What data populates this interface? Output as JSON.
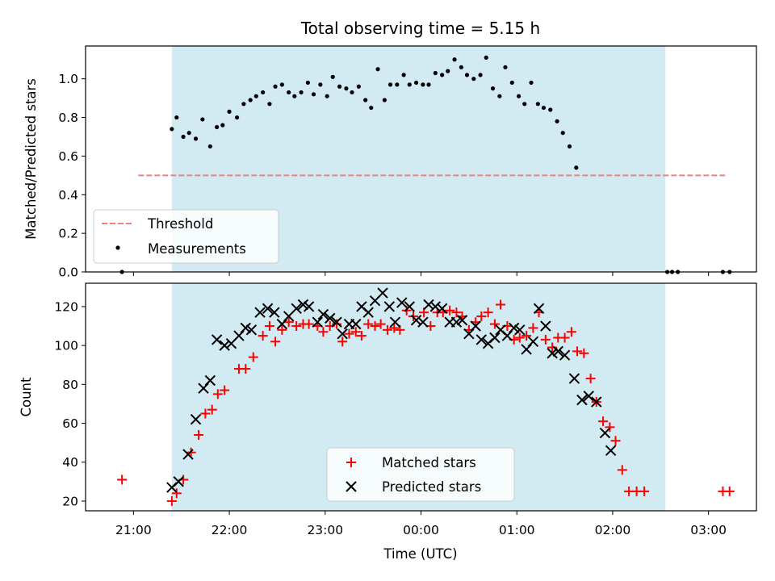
{
  "chart_data": {
    "title": "Total observing time = 5.15 h",
    "shade_colors": {
      "span": "#add8e6",
      "threshold": "#f08080",
      "measure": "#000000",
      "matched": "#ff0000",
      "predicted": "#000000"
    },
    "x_axis": {
      "label": "Time (UTC)",
      "ticks": [
        {
          "value": 21.0,
          "label": "21:00"
        },
        {
          "value": 22.0,
          "label": "22:00"
        },
        {
          "value": 23.0,
          "label": "23:00"
        },
        {
          "value": 24.0,
          "label": "00:00"
        },
        {
          "value": 25.0,
          "label": "01:00"
        },
        {
          "value": 26.0,
          "label": "02:00"
        },
        {
          "value": 27.0,
          "label": "03:00"
        }
      ],
      "range": [
        20.5,
        27.5
      ]
    },
    "observing_span": [
      21.4,
      26.55
    ],
    "panels": [
      {
        "type": "scatter",
        "ylabel": "Matched/Predicted stars",
        "ylim": [
          0.0,
          1.17
        ],
        "yticks": [
          {
            "value": 0.0,
            "label": "0.0"
          },
          {
            "value": 0.2,
            "label": "0.2"
          },
          {
            "value": 0.4,
            "label": "0.4"
          },
          {
            "value": 0.6,
            "label": "0.6"
          },
          {
            "value": 0.8,
            "label": "0.8"
          },
          {
            "value": 1.0,
            "label": "1.0"
          }
        ],
        "threshold": {
          "name": "Threshold",
          "value": 0.5,
          "x": [
            21.05,
            27.2
          ]
        },
        "measurements": {
          "name": "Measurements",
          "points": [
            [
              20.88,
              0.0
            ],
            [
              21.4,
              0.74
            ],
            [
              21.45,
              0.8
            ],
            [
              21.52,
              0.7
            ],
            [
              21.58,
              0.72
            ],
            [
              21.65,
              0.69
            ],
            [
              21.72,
              0.79
            ],
            [
              21.8,
              0.65
            ],
            [
              21.87,
              0.75
            ],
            [
              21.93,
              0.76
            ],
            [
              22.0,
              0.83
            ],
            [
              22.08,
              0.8
            ],
            [
              22.15,
              0.87
            ],
            [
              22.22,
              0.89
            ],
            [
              22.28,
              0.91
            ],
            [
              22.35,
              0.93
            ],
            [
              22.42,
              0.87
            ],
            [
              22.48,
              0.96
            ],
            [
              22.55,
              0.97
            ],
            [
              22.62,
              0.93
            ],
            [
              22.68,
              0.91
            ],
            [
              22.75,
              0.93
            ],
            [
              22.82,
              0.98
            ],
            [
              22.88,
              0.92
            ],
            [
              22.95,
              0.97
            ],
            [
              23.02,
              0.91
            ],
            [
              23.08,
              1.01
            ],
            [
              23.15,
              0.96
            ],
            [
              23.22,
              0.95
            ],
            [
              23.28,
              0.93
            ],
            [
              23.35,
              0.96
            ],
            [
              23.42,
              0.89
            ],
            [
              23.48,
              0.85
            ],
            [
              23.55,
              1.05
            ],
            [
              23.62,
              0.89
            ],
            [
              23.68,
              0.97
            ],
            [
              23.75,
              0.97
            ],
            [
              23.82,
              1.02
            ],
            [
              23.88,
              0.97
            ],
            [
              23.95,
              0.98
            ],
            [
              24.02,
              0.97
            ],
            [
              24.08,
              0.97
            ],
            [
              24.15,
              1.03
            ],
            [
              24.22,
              1.02
            ],
            [
              24.28,
              1.04
            ],
            [
              24.35,
              1.1
            ],
            [
              24.42,
              1.06
            ],
            [
              24.48,
              1.02
            ],
            [
              24.55,
              1.0
            ],
            [
              24.62,
              1.02
            ],
            [
              24.68,
              1.11
            ],
            [
              24.75,
              0.95
            ],
            [
              24.82,
              0.91
            ],
            [
              24.88,
              1.06
            ],
            [
              24.95,
              0.98
            ],
            [
              25.02,
              0.91
            ],
            [
              25.08,
              0.87
            ],
            [
              25.15,
              0.98
            ],
            [
              25.22,
              0.87
            ],
            [
              25.28,
              0.85
            ],
            [
              25.35,
              0.84
            ],
            [
              25.42,
              0.78
            ],
            [
              25.48,
              0.72
            ],
            [
              25.55,
              0.65
            ],
            [
              25.62,
              0.54
            ],
            [
              26.57,
              0.0
            ],
            [
              26.62,
              0.0
            ],
            [
              26.68,
              0.0
            ],
            [
              27.15,
              0.0
            ],
            [
              27.22,
              0.0
            ]
          ]
        },
        "legend": {
          "placement": "lower-left"
        }
      },
      {
        "type": "scatter",
        "ylabel": "Count",
        "ylim": [
          15,
          132
        ],
        "yticks": [
          {
            "value": 20,
            "label": "20"
          },
          {
            "value": 40,
            "label": "40"
          },
          {
            "value": 60,
            "label": "60"
          },
          {
            "value": 80,
            "label": "80"
          },
          {
            "value": 100,
            "label": "100"
          },
          {
            "value": 120,
            "label": "120"
          }
        ],
        "series": [
          {
            "name": "Matched stars",
            "marker": "plus",
            "points": [
              [
                20.88,
                31
              ],
              [
                21.4,
                20
              ],
              [
                21.45,
                24
              ],
              [
                21.52,
                31
              ],
              [
                21.6,
                45
              ],
              [
                21.68,
                54
              ],
              [
                21.75,
                65
              ],
              [
                21.82,
                67
              ],
              [
                21.88,
                75
              ],
              [
                21.95,
                77
              ],
              [
                22.1,
                88
              ],
              [
                22.17,
                88
              ],
              [
                22.25,
                94
              ],
              [
                22.35,
                105
              ],
              [
                22.42,
                110
              ],
              [
                22.48,
                102
              ],
              [
                22.55,
                108
              ],
              [
                22.62,
                112
              ],
              [
                22.7,
                110
              ],
              [
                22.77,
                111
              ],
              [
                22.83,
                111
              ],
              [
                22.92,
                110
              ],
              [
                22.98,
                107
              ],
              [
                23.05,
                110
              ],
              [
                23.12,
                111
              ],
              [
                23.18,
                102
              ],
              [
                23.25,
                106
              ],
              [
                23.32,
                107
              ],
              [
                23.38,
                105
              ],
              [
                23.45,
                111
              ],
              [
                23.52,
                110
              ],
              [
                23.58,
                111
              ],
              [
                23.65,
                108
              ],
              [
                23.72,
                109
              ],
              [
                23.78,
                108
              ],
              [
                23.85,
                118
              ],
              [
                23.92,
                115
              ],
              [
                24.03,
                117
              ],
              [
                24.1,
                110
              ],
              [
                24.17,
                117
              ],
              [
                24.23,
                117
              ],
              [
                24.3,
                118
              ],
              [
                24.37,
                117
              ],
              [
                24.43,
                115
              ],
              [
                24.5,
                108
              ],
              [
                24.57,
                112
              ],
              [
                24.63,
                115
              ],
              [
                24.7,
                117
              ],
              [
                24.77,
                111
              ],
              [
                24.83,
                121
              ],
              [
                24.9,
                110
              ],
              [
                24.97,
                103
              ],
              [
                25.03,
                104
              ],
              [
                25.1,
                105
              ],
              [
                25.17,
                109
              ],
              [
                25.23,
                117
              ],
              [
                25.3,
                103
              ],
              [
                25.37,
                99
              ],
              [
                25.43,
                104
              ],
              [
                25.5,
                104
              ],
              [
                25.57,
                107
              ],
              [
                25.63,
                97
              ],
              [
                25.7,
                96
              ],
              [
                25.77,
                83
              ],
              [
                25.83,
                71
              ],
              [
                25.9,
                61
              ],
              [
                25.97,
                58
              ],
              [
                26.03,
                51
              ],
              [
                26.1,
                36
              ],
              [
                26.17,
                25
              ],
              [
                26.25,
                25
              ],
              [
                26.33,
                25
              ],
              [
                27.15,
                25
              ],
              [
                27.22,
                25
              ]
            ]
          },
          {
            "name": "Predicted stars",
            "marker": "x",
            "points": [
              [
                21.4,
                27
              ],
              [
                21.47,
                30
              ],
              [
                21.57,
                44
              ],
              [
                21.65,
                62
              ],
              [
                21.73,
                78
              ],
              [
                21.8,
                82
              ],
              [
                21.87,
                103
              ],
              [
                21.95,
                100
              ],
              [
                22.02,
                101
              ],
              [
                22.1,
                105
              ],
              [
                22.17,
                109
              ],
              [
                22.23,
                108
              ],
              [
                22.32,
                117
              ],
              [
                22.4,
                119
              ],
              [
                22.47,
                117
              ],
              [
                22.55,
                111
              ],
              [
                22.62,
                115
              ],
              [
                22.7,
                119
              ],
              [
                22.77,
                121
              ],
              [
                22.83,
                120
              ],
              [
                22.92,
                112
              ],
              [
                22.98,
                116
              ],
              [
                23.05,
                114
              ],
              [
                23.12,
                112
              ],
              [
                23.18,
                106
              ],
              [
                23.25,
                111
              ],
              [
                23.32,
                111
              ],
              [
                23.38,
                120
              ],
              [
                23.45,
                117
              ],
              [
                23.52,
                123
              ],
              [
                23.6,
                127
              ],
              [
                23.67,
                120
              ],
              [
                23.73,
                112
              ],
              [
                23.8,
                122
              ],
              [
                23.88,
                120
              ],
              [
                23.95,
                113
              ],
              [
                24.02,
                112
              ],
              [
                24.08,
                121
              ],
              [
                24.15,
                120
              ],
              [
                24.22,
                119
              ],
              [
                24.3,
                112
              ],
              [
                24.37,
                112
              ],
              [
                24.43,
                113
              ],
              [
                24.5,
                106
              ],
              [
                24.57,
                110
              ],
              [
                24.63,
                103
              ],
              [
                24.7,
                101
              ],
              [
                24.77,
                104
              ],
              [
                24.83,
                108
              ],
              [
                24.9,
                105
              ],
              [
                24.97,
                109
              ],
              [
                25.03,
                108
              ],
              [
                25.1,
                98
              ],
              [
                25.17,
                102
              ],
              [
                25.23,
                119
              ],
              [
                25.3,
                110
              ],
              [
                25.37,
                96
              ],
              [
                25.43,
                97
              ],
              [
                25.5,
                95
              ],
              [
                25.6,
                83
              ],
              [
                25.68,
                72
              ],
              [
                25.75,
                74
              ],
              [
                25.83,
                71
              ],
              [
                25.92,
                55
              ],
              [
                25.98,
                46
              ]
            ]
          }
        ],
        "legend": {
          "placement": "lower-center"
        }
      }
    ]
  }
}
